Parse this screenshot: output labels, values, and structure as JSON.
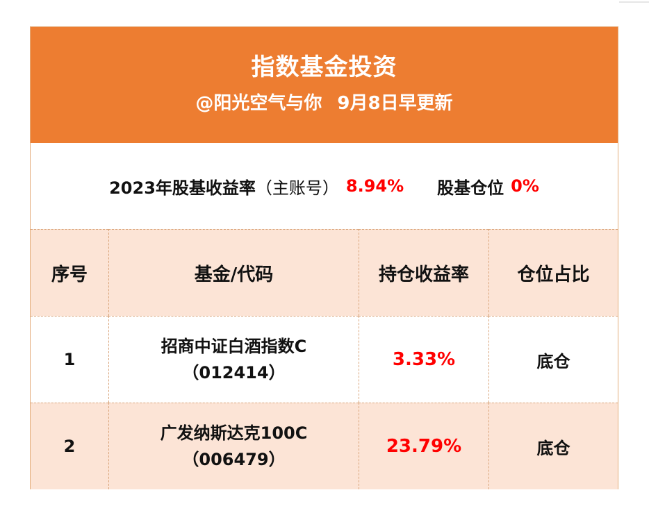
{
  "header": {
    "title": "指数基金投资",
    "author": "@阳光空气与你",
    "update": "9月8日早更新"
  },
  "summary": {
    "return_label": "2023年股基收益率",
    "account_note": "（主账号）",
    "return_value": "8.94%",
    "position_label": "股基仓位",
    "position_value": "0%"
  },
  "table": {
    "columns": [
      "序号",
      "基金/代码",
      "持仓收益率",
      "仓位占比"
    ],
    "rows": [
      {
        "index": "1",
        "fund_name": "招商中证白酒指数C",
        "fund_code": "（012414）",
        "return": "3.33%",
        "position": "底仓"
      },
      {
        "index": "2",
        "fund_name": "广发纳斯达克100C",
        "fund_code": "（006479）",
        "return": "23.79%",
        "position": "底仓"
      }
    ]
  },
  "colors": {
    "header_bg": "#ed7d31",
    "row_tint": "#fce4d6",
    "highlight": "#ff0000"
  }
}
